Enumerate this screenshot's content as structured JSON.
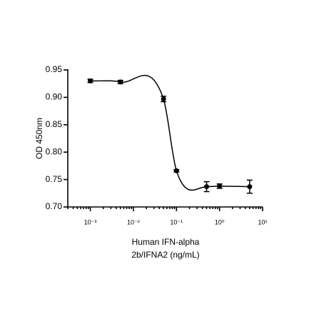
{
  "chart_data": {
    "type": "scatter",
    "x_label": [
      "Human IFN-alpha",
      "2b/IFNA2 (ng/mL)"
    ],
    "y_label": "OD 450nm",
    "x": [
      0.001,
      0.005,
      0.05,
      0.1,
      0.5,
      1,
      5
    ],
    "series": [
      {
        "color": "#000000",
        "values": [
          0.93,
          0.928,
          0.897,
          0.766,
          0.737,
          0.738,
          0.737
        ],
        "errors": [
          0.003,
          0.003,
          0.005,
          0.002,
          0.009,
          0.004,
          0.012
        ]
      }
    ],
    "x_log": true,
    "xlim": [
      0.0003,
      10
    ],
    "xticks": [
      {
        "value": 0.001,
        "label": "10⁻³"
      },
      {
        "value": 0.01,
        "label": "10⁻²"
      },
      {
        "value": 0.1,
        "label": "10⁻¹"
      },
      {
        "value": 1,
        "label": "10⁰"
      },
      {
        "value": 10,
        "label": "10¹"
      }
    ],
    "ylim": [
      0.7,
      0.95
    ],
    "yticks": [
      {
        "value": 0.7,
        "label": "0.70"
      },
      {
        "value": 0.75,
        "label": "0.75"
      },
      {
        "value": 0.8,
        "label": "0.80"
      },
      {
        "value": 0.85,
        "label": "0.85"
      },
      {
        "value": 0.9,
        "label": "0.90"
      },
      {
        "value": 0.95,
        "label": "0.95"
      }
    ],
    "grid": false
  }
}
